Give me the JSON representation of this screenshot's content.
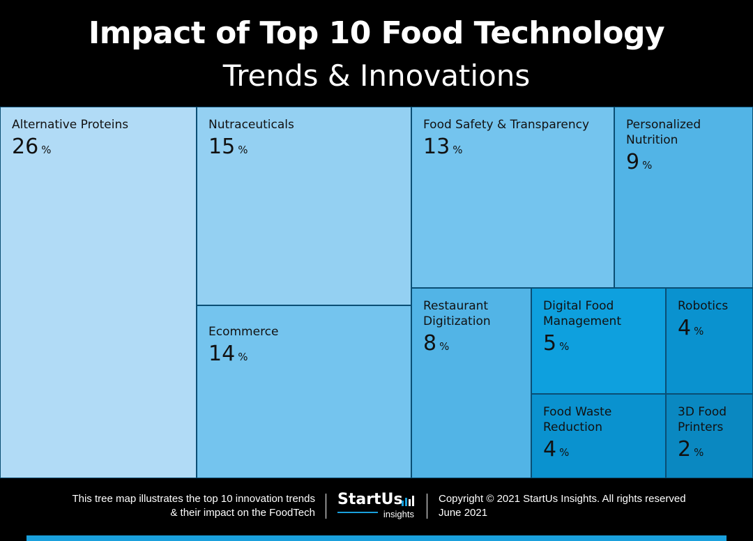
{
  "chart_data": {
    "type": "treemap",
    "title": "Impact of Top 10 Food Technology",
    "subtitle": "Trends & Innovations",
    "unit": "%",
    "items": [
      {
        "label": "Alternative Proteins",
        "value": 26,
        "color": "#b1dbf6"
      },
      {
        "label": "Nutraceuticals",
        "value": 15,
        "color": "#94d0f2"
      },
      {
        "label": "Ecommerce",
        "value": 14,
        "color": "#74c4ee"
      },
      {
        "label": "Food Safety & Transparency",
        "value": 13,
        "color": "#74c4ee"
      },
      {
        "label": "Personalized Nutrition",
        "value": 9,
        "color": "#52b4e6"
      },
      {
        "label": "Restaurant Digitization",
        "value": 8,
        "color": "#52b4e6"
      },
      {
        "label": "Digital Food Management",
        "value": 5,
        "color": "#0ea0de"
      },
      {
        "label": "Robotics",
        "value": 4,
        "color": "#0a92cf"
      },
      {
        "label": "Food Waste Reduction",
        "value": 4,
        "color": "#0a92cf"
      },
      {
        "label": "3D Food Printers",
        "value": 2,
        "color": "#0a88c1"
      }
    ]
  },
  "footer": {
    "description_line1": "This tree map illustrates the top 10 innovation trends",
    "description_line2": "& their impact on the FoodTech",
    "logo_main": "StartUs",
    "logo_sub": "insights",
    "copyright": "Copyright © 2021 StartUs Insights. All rights reserved",
    "date": "June 2021"
  },
  "colors": {
    "background": "#000000",
    "accent": "#1aa0dc"
  }
}
